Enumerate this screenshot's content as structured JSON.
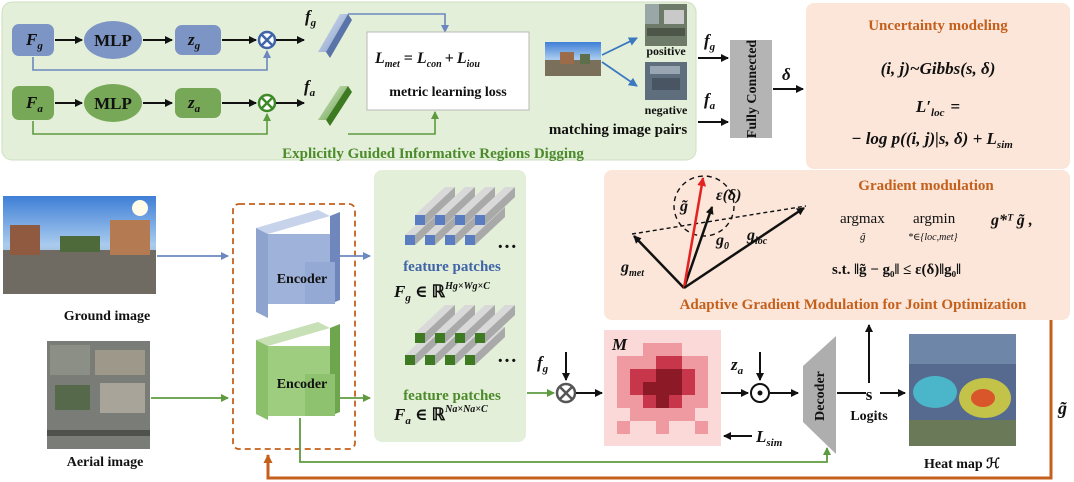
{
  "top_panel": {
    "caption": "Explicitly Guided Informative Regions Digging",
    "nodes": {
      "Fg": "F",
      "Fg_sub": "g",
      "Fa": "F",
      "Fa_sub": "a",
      "mlp": "MLP",
      "zg": "z",
      "zg_sub": "g",
      "za": "z",
      "za_sub": "a",
      "fg": "f",
      "fg_sub": "g",
      "fa": "f",
      "fa_sub": "a"
    },
    "loss_box": {
      "equation_lhs": "L",
      "equation_lhs_sub": "met",
      "equation_eq": "=",
      "con": "L",
      "con_sub": "con",
      "plus": "+",
      "iou": "L",
      "iou_sub": "iou",
      "caption": "metric learning loss"
    }
  },
  "matching": {
    "positive": "positive",
    "negative": "negative",
    "caption": "matching image pairs",
    "fg": "f",
    "fg_sub": "g",
    "fa": "f",
    "fa_sub": "a",
    "fc": "Fully Connected",
    "delta": "δ"
  },
  "uncertainty": {
    "title": "Uncertainty modeling",
    "eq1": "(i, j)~Gibbs(s, δ)",
    "eq2a": "L′",
    "eq2a_sub": "loc",
    "eq2b": "=",
    "eq3": "− log p((i, j)|s, δ) + L",
    "eq3_sub": "sim"
  },
  "gradient": {
    "title": "Gradient modulation",
    "eps": "ε(δ)",
    "g_tilde": "g̃",
    "g0": "g",
    "g0_sub": "0",
    "gloc": "g",
    "gloc_sub": "loc",
    "gmet": "g",
    "gmet_sub": "met",
    "argmax": "argmax",
    "argmin": "argmin",
    "argmax_under": "g̃",
    "argmin_under": "*∈{loc,met}",
    "objective": "g*ᵀ g̃ ,",
    "constraint": "s.t. ‖g̃ − g₀‖ ≤ ε(δ)‖g₀‖",
    "caption": "Adaptive Gradient Modulation for Joint Optimization"
  },
  "bottom": {
    "ground_image": "Ground image",
    "aerial_image": "Aerial image",
    "encoder": "Encoder",
    "feature_patches": "feature patches",
    "Fg_eq": "F",
    "Fg_sub": "g",
    "Fg_set": "∈ ℝ",
    "Fg_sup": "Hg×Wg×C",
    "Fa_eq": "F",
    "Fa_sub": "a",
    "Fa_set": "∈ ℝ",
    "Fa_sup": "Na×Na×C",
    "dots": "…",
    "fg": "f",
    "fg_sub": "g",
    "M": "M",
    "za": "z",
    "za_sub": "a",
    "Lsim": "L",
    "Lsim_sub": "sim",
    "decoder": "Decoder",
    "s": "s",
    "logits": "Logits",
    "heatmap": "Heat map ℋ",
    "g_tilde": "g̃"
  },
  "colors": {
    "blue_fill": "#7d95c4",
    "green_fill": "#76a857",
    "light_green_panel": "#e3efd8",
    "peach_panel": "#fbe6d9",
    "orange_arrow": "#c4601c",
    "heat_dark": "#8b1a26",
    "heat_light": "#f3b7b7"
  }
}
